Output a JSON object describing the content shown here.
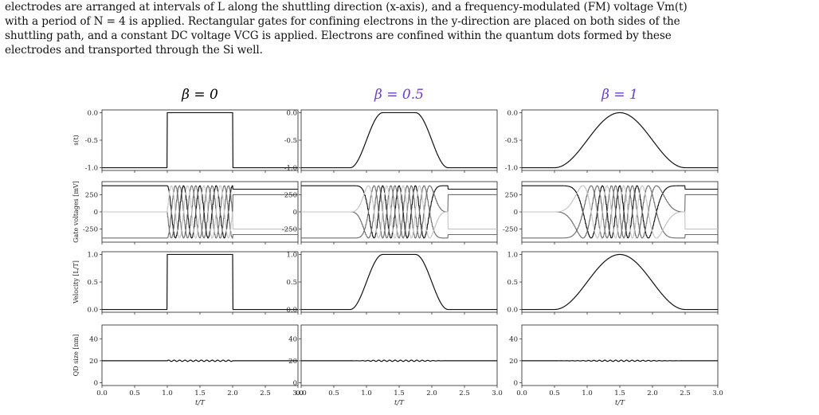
{
  "paragraph_lines": [
    "electrodes are arranged at intervals of L along the shuttling direction (x-axis), and a frequency-modulated (FM) voltage Vm(t)",
    "with a period of N = 4 is applied. Rectangular gates for confining electrons in the y-direction are placed on both sides of the",
    "shuttling path, and a constant DC voltage VCG is applied. Electrons are confined within the quantum dots formed by these",
    "electrodes and transported through the Si well."
  ],
  "colors": {
    "title_beta0": "#000000",
    "title_other": "#6a3fc8",
    "trace_dark": "#111111",
    "trace_mid": "#6e6e6e",
    "trace_light": "#c4c4c4"
  },
  "chart_data": [
    {
      "type": "line",
      "panel_titles": [
        "β = 0",
        "β = 0.5",
        "β = 1"
      ],
      "beta_values": [
        0,
        0.5,
        1
      ],
      "xlabel": "t/T",
      "x_range": [
        0.0,
        3.0
      ],
      "x_ticks": [
        "0.0",
        "0.5",
        "1.0",
        "1.5",
        "2.0",
        "2.5",
        "3.0"
      ],
      "shuttle_window": [
        1.0,
        2.0
      ],
      "rows": [
        {
          "name": "s",
          "ylabel": "s(t)",
          "y_range": [
            -1.0,
            0.0
          ],
          "y_ticks": [
            "0.0",
            "-0.5",
            "-1.0"
          ],
          "y_tick_values": [
            0.0,
            -0.5,
            -1.0
          ]
        },
        {
          "name": "gates",
          "ylabel": "Gate voltages [mV]",
          "y_range": [
            -400,
            400
          ],
          "y_ticks": [
            "250",
            "0",
            "-250"
          ],
          "y_tick_values": [
            250,
            0,
            -250
          ]
        },
        {
          "name": "velocity",
          "ylabel": "Velocity [L/T]",
          "y_range": [
            0.0,
            1.0
          ],
          "y_ticks": [
            "1.0",
            "0.5",
            "0.0"
          ],
          "y_tick_values": [
            1.0,
            0.5,
            0.0
          ]
        },
        {
          "name": "qd",
          "ylabel": "QD size [nm]",
          "y_range": [
            0,
            50
          ],
          "y_ticks": [
            "40",
            "20",
            "0"
          ],
          "y_tick_values": [
            40,
            20,
            0
          ]
        }
      ],
      "gate_series": [
        {
          "amp_before": 380,
          "amp_after": 330,
          "phase_deg": 0,
          "color": "#111111"
        },
        {
          "amp_before": 0,
          "amp_after": 250,
          "phase_deg": 90,
          "color": "#6e6e6e"
        },
        {
          "amp_before": -380,
          "amp_after": -330,
          "phase_deg": 180,
          "color": "#6e6e6e"
        },
        {
          "amp_before": 0,
          "amp_after": -250,
          "phase_deg": 270,
          "color": "#c4c4c4"
        }
      ],
      "qd_size_nm": 20,
      "qd_ripple_nm": 0.6,
      "gate_oscillation_cycles": 4
    }
  ]
}
